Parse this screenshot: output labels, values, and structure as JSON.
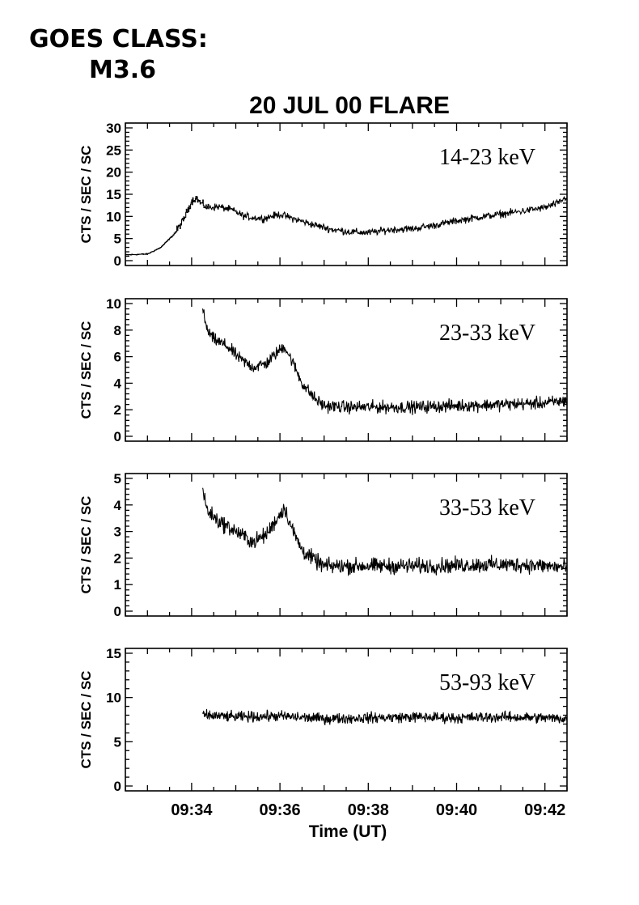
{
  "header": {
    "goes_line1": "GOES CLASS:",
    "goes_line2": "M3.6",
    "title": "20 JUL 00 FLARE"
  },
  "chart_data": {
    "type": "line",
    "title": "20 JUL 00 FLARE",
    "xlabel": "Time (UT)",
    "x_range_minutes": [
      32.5,
      42.5
    ],
    "x_ticks": [
      "09:34",
      "09:36",
      "09:38",
      "09:40",
      "09:42"
    ],
    "x_tick_minutes": [
      34,
      36,
      38,
      40,
      42
    ],
    "grid": false,
    "panels": [
      {
        "name": "14-23 keV",
        "ylabel": "CTS / SEC / SC",
        "ylim": [
          0,
          30
        ],
        "yticks": [
          0,
          5,
          10,
          15,
          20,
          25,
          30
        ],
        "noise": 0.6,
        "start": 32.5,
        "keypoints": [
          [
            32.5,
            1.3
          ],
          [
            33.0,
            1.5
          ],
          [
            33.3,
            3.0
          ],
          [
            33.6,
            6.0
          ],
          [
            33.8,
            9.0
          ],
          [
            34.0,
            13.5
          ],
          [
            34.1,
            14.2
          ],
          [
            34.2,
            13.0
          ],
          [
            34.35,
            12.0
          ],
          [
            34.6,
            12.2
          ],
          [
            34.9,
            11.5
          ],
          [
            35.2,
            10.0
          ],
          [
            35.6,
            9.5
          ],
          [
            36.0,
            10.5
          ],
          [
            36.3,
            9.5
          ],
          [
            36.8,
            8.0
          ],
          [
            37.2,
            7.0
          ],
          [
            37.6,
            6.5
          ],
          [
            38.0,
            6.3
          ],
          [
            38.5,
            7.0
          ],
          [
            39.0,
            7.2
          ],
          [
            39.5,
            8.0
          ],
          [
            40.0,
            9.0
          ],
          [
            40.5,
            9.8
          ],
          [
            41.0,
            10.5
          ],
          [
            41.5,
            11.2
          ],
          [
            42.0,
            12.0
          ],
          [
            42.3,
            13.0
          ],
          [
            42.5,
            14.5
          ]
        ]
      },
      {
        "name": "23-33 keV",
        "ylabel": "CTS / SEC / SC",
        "ylim": [
          0,
          10
        ],
        "yticks": [
          0,
          2,
          4,
          6,
          8,
          10
        ],
        "noise": 0.35,
        "start": 34.25,
        "keypoints": [
          [
            34.25,
            9.5
          ],
          [
            34.35,
            8.0
          ],
          [
            34.5,
            7.3
          ],
          [
            34.8,
            6.8
          ],
          [
            35.1,
            5.8
          ],
          [
            35.4,
            5.2
          ],
          [
            35.7,
            5.5
          ],
          [
            35.9,
            6.2
          ],
          [
            36.1,
            6.8
          ],
          [
            36.3,
            5.5
          ],
          [
            36.5,
            4.0
          ],
          [
            36.8,
            2.8
          ],
          [
            37.0,
            2.3
          ],
          [
            37.5,
            2.2
          ],
          [
            38.0,
            2.2
          ],
          [
            39.0,
            2.2
          ],
          [
            40.0,
            2.3
          ],
          [
            41.0,
            2.4
          ],
          [
            42.0,
            2.5
          ],
          [
            42.5,
            2.7
          ]
        ]
      },
      {
        "name": "33-53 keV",
        "ylabel": "CTS / SEC / SC",
        "ylim": [
          0,
          5
        ],
        "yticks": [
          0,
          1,
          2,
          3,
          4,
          5
        ],
        "noise": 0.22,
        "start": 34.25,
        "keypoints": [
          [
            34.25,
            4.6
          ],
          [
            34.35,
            3.8
          ],
          [
            34.6,
            3.4
          ],
          [
            35.0,
            3.0
          ],
          [
            35.4,
            2.6
          ],
          [
            35.7,
            2.9
          ],
          [
            35.9,
            3.4
          ],
          [
            36.1,
            3.9
          ],
          [
            36.3,
            3.0
          ],
          [
            36.5,
            2.3
          ],
          [
            36.8,
            1.9
          ],
          [
            37.0,
            1.7
          ],
          [
            37.5,
            1.7
          ],
          [
            38.5,
            1.7
          ],
          [
            39.5,
            1.7
          ],
          [
            40.5,
            1.75
          ],
          [
            41.5,
            1.75
          ],
          [
            42.5,
            1.65
          ]
        ]
      },
      {
        "name": "53-93 keV",
        "ylabel": "CTS / SEC / SC",
        "ylim": [
          0,
          15
        ],
        "yticks": [
          0,
          5,
          10,
          15
        ],
        "noise": 0.45,
        "start": 34.25,
        "keypoints": [
          [
            34.25,
            8.0
          ],
          [
            35.0,
            7.8
          ],
          [
            36.0,
            7.9
          ],
          [
            37.0,
            7.6
          ],
          [
            38.0,
            7.7
          ],
          [
            39.0,
            7.8
          ],
          [
            40.0,
            7.7
          ],
          [
            41.0,
            7.8
          ],
          [
            42.0,
            7.7
          ],
          [
            42.5,
            7.6
          ]
        ]
      }
    ]
  }
}
